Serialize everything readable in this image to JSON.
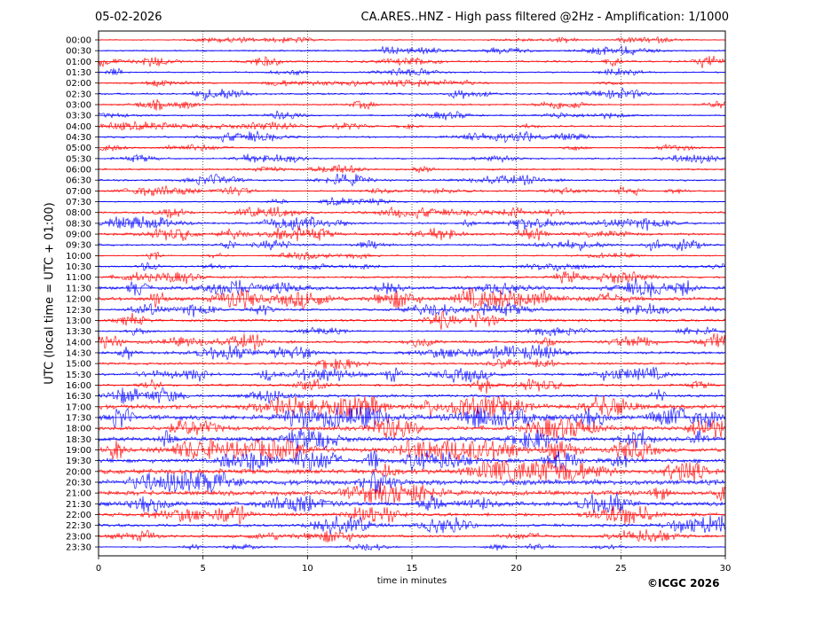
{
  "header": {
    "date": "05-02-2026",
    "title": "CA.ARES..HNZ - High pass filtered @2Hz - Amplification: 1/1000"
  },
  "footer": {
    "copyright": "©ICGC 2026"
  },
  "chart_data": {
    "type": "line",
    "title": "CA.ARES..HNZ - High pass filtered @2Hz - Amplification: 1/1000",
    "xlabel": "time in minutes",
    "ylabel": "UTC (local time = UTC + 01:00)",
    "xlim": [
      0,
      30
    ],
    "xticks": [
      0,
      5,
      10,
      15,
      20,
      25,
      30
    ],
    "grid": "vertical dotted at x ticks",
    "colors": {
      "even_rows": "#0000ff",
      "odd_rows": "#ff0000"
    },
    "rows": [
      {
        "label": "00:00",
        "color": "#ff0000",
        "activity": 0.05
      },
      {
        "label": "00:30",
        "color": "#0000ff",
        "activity": 0.15
      },
      {
        "label": "01:00",
        "color": "#ff0000",
        "activity": 0.25
      },
      {
        "label": "01:30",
        "color": "#0000ff",
        "activity": 0.15
      },
      {
        "label": "02:00",
        "color": "#ff0000",
        "activity": 0.08
      },
      {
        "label": "02:30",
        "color": "#0000ff",
        "activity": 0.25
      },
      {
        "label": "03:00",
        "color": "#ff0000",
        "activity": 0.2
      },
      {
        "label": "03:30",
        "color": "#0000ff",
        "activity": 0.15
      },
      {
        "label": "04:00",
        "color": "#ff0000",
        "activity": 0.15
      },
      {
        "label": "04:30",
        "color": "#0000ff",
        "activity": 0.2
      },
      {
        "label": "05:00",
        "color": "#ff0000",
        "activity": 0.08
      },
      {
        "label": "05:30",
        "color": "#0000ff",
        "activity": 0.15
      },
      {
        "label": "06:00",
        "color": "#ff0000",
        "activity": 0.2
      },
      {
        "label": "06:30",
        "color": "#0000ff",
        "activity": 0.25
      },
      {
        "label": "07:00",
        "color": "#ff0000",
        "activity": 0.2
      },
      {
        "label": "07:30",
        "color": "#0000ff",
        "activity": 0.12
      },
      {
        "label": "08:00",
        "color": "#ff0000",
        "activity": 0.25
      },
      {
        "label": "08:30",
        "color": "#0000ff",
        "activity": 0.3
      },
      {
        "label": "09:00",
        "color": "#ff0000",
        "activity": 0.35
      },
      {
        "label": "09:30",
        "color": "#0000ff",
        "activity": 0.3
      },
      {
        "label": "10:00",
        "color": "#ff0000",
        "activity": 0.1
      },
      {
        "label": "10:30",
        "color": "#0000ff",
        "activity": 0.2
      },
      {
        "label": "11:00",
        "color": "#ff0000",
        "activity": 0.3
      },
      {
        "label": "11:30",
        "color": "#0000ff",
        "activity": 0.55
      },
      {
        "label": "12:00",
        "color": "#ff0000",
        "activity": 0.6
      },
      {
        "label": "12:30",
        "color": "#0000ff",
        "activity": 0.3
      },
      {
        "label": "13:00",
        "color": "#ff0000",
        "activity": 0.45
      },
      {
        "label": "13:30",
        "color": "#0000ff",
        "activity": 0.15
      },
      {
        "label": "14:00",
        "color": "#ff0000",
        "activity": 0.4
      },
      {
        "label": "14:30",
        "color": "#0000ff",
        "activity": 0.4
      },
      {
        "label": "15:00",
        "color": "#ff0000",
        "activity": 0.35
      },
      {
        "label": "15:30",
        "color": "#0000ff",
        "activity": 0.35
      },
      {
        "label": "16:00",
        "color": "#ff0000",
        "activity": 0.35
      },
      {
        "label": "16:30",
        "color": "#0000ff",
        "activity": 0.45
      },
      {
        "label": "17:00",
        "color": "#ff0000",
        "activity": 0.85
      },
      {
        "label": "17:30",
        "color": "#0000ff",
        "activity": 0.9
      },
      {
        "label": "18:00",
        "color": "#ff0000",
        "activity": 0.8
      },
      {
        "label": "18:30",
        "color": "#0000ff",
        "activity": 0.8
      },
      {
        "label": "19:00",
        "color": "#ff0000",
        "activity": 0.85
      },
      {
        "label": "19:30",
        "color": "#0000ff",
        "activity": 0.8
      },
      {
        "label": "20:00",
        "color": "#ff0000",
        "activity": 0.95
      },
      {
        "label": "20:30",
        "color": "#0000ff",
        "activity": 1.0
      },
      {
        "label": "21:00",
        "color": "#ff0000",
        "activity": 0.9
      },
      {
        "label": "21:30",
        "color": "#0000ff",
        "activity": 0.75
      },
      {
        "label": "22:00",
        "color": "#ff0000",
        "activity": 0.6
      },
      {
        "label": "22:30",
        "color": "#0000ff",
        "activity": 0.5
      },
      {
        "label": "23:00",
        "color": "#ff0000",
        "activity": 0.35
      },
      {
        "label": "23:30",
        "color": "#0000ff",
        "activity": 0.1
      }
    ]
  }
}
